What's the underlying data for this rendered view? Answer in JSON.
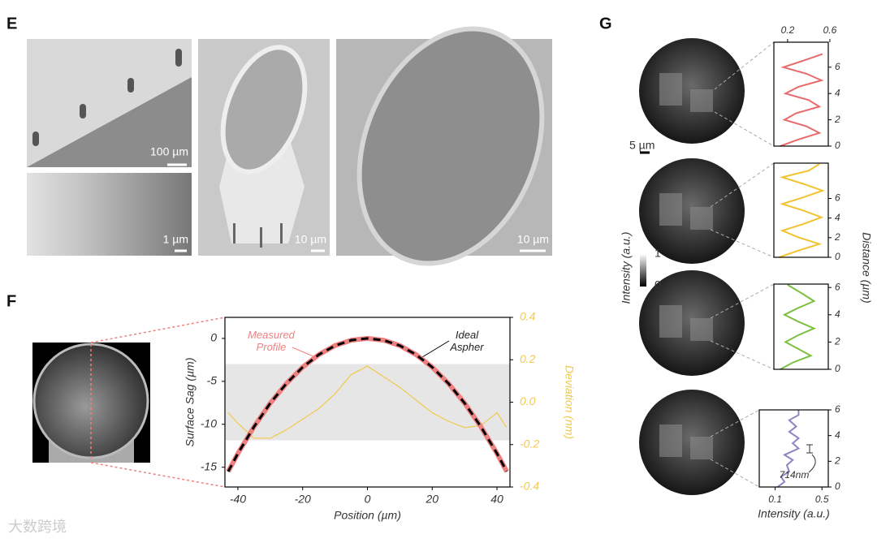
{
  "figure": {
    "panels": [
      "E",
      "F",
      "G"
    ],
    "scale_bars": [
      "100 µm",
      "1 µm",
      "10 µm",
      "10 µm"
    ],
    "g": {
      "scale_bar": "5 µm",
      "colorbar_label": "Intensity (a.u.)",
      "colorbar_ticks": [
        "1",
        "0"
      ],
      "ylabel": "Distance (µm)"
    },
    "watermark": "大数跨境"
  },
  "chart_data": [
    {
      "type": "line",
      "x": [
        -43,
        -40,
        -35,
        -30,
        -25,
        -20,
        -15,
        -10,
        -5,
        0,
        5,
        10,
        15,
        20,
        25,
        30,
        35,
        40,
        43
      ],
      "series": [
        {
          "name": "Measured Profile",
          "color": "#ef8080",
          "values": [
            -15.5,
            -13.4,
            -10.27,
            -7.54,
            -5.24,
            -3.35,
            -1.89,
            -0.84,
            -0.21,
            0,
            -0.21,
            -0.84,
            -1.89,
            -3.35,
            -5.24,
            -7.54,
            -10.27,
            -13.4,
            -15.5
          ]
        },
        {
          "name": "Ideal Aspher",
          "color": "#000000",
          "dashed": true,
          "values": [
            -15.5,
            -13.4,
            -10.27,
            -7.54,
            -5.24,
            -3.35,
            -1.89,
            -0.84,
            -0.21,
            0,
            -0.21,
            -0.84,
            -1.89,
            -3.35,
            -5.24,
            -7.54,
            -10.27,
            -13.4,
            -15.5
          ]
        },
        {
          "color": "#f2c94c",
          "axis": "y2",
          "values": [
            -0.05,
            -0.1,
            -0.17,
            -0.17,
            -0.13,
            -0.08,
            -0.03,
            0.04,
            0.13,
            0.17,
            0.12,
            0.07,
            0.01,
            -0.05,
            -0.09,
            -0.12,
            -0.11,
            -0.05,
            -0.12
          ]
        }
      ],
      "xlim": [
        -44,
        44
      ],
      "ylim": [
        -17.3,
        2.45
      ],
      "y2lim": [
        -0.4,
        0.4
      ],
      "xticks": [
        -40,
        -20,
        0,
        20,
        40
      ],
      "yticks": [
        0,
        -5,
        -10,
        -15
      ],
      "y2ticks": [
        0.4,
        0.2,
        {
          "value": 0,
          "label": "0.0"
        },
        -0.2,
        -0.4
      ],
      "y2_band": [
        -0.18,
        0.18
      ],
      "xlabel": "Position (µm)",
      "ylabel": "Surface Sag (µm)",
      "y2label": "Deviation (nm)"
    },
    {
      "type": "line",
      "color": "#e86a6a",
      "x": [
        0.13,
        0.3,
        0.5,
        0.38,
        0.17,
        0.28,
        0.5,
        0.4,
        0.18,
        0.3,
        0.52,
        0.38,
        0.16,
        0.35,
        0.53
      ],
      "y": [
        0,
        0.5,
        1,
        1.5,
        2,
        2.5,
        3,
        3.5,
        4,
        4.5,
        5,
        5.5,
        6,
        6.5,
        7
      ],
      "xlim": [
        0.07,
        0.585
      ],
      "ylim": [
        0,
        7.9
      ],
      "xticks": [
        0.2,
        0.6
      ],
      "xtick_side": "top",
      "yticks": [
        0,
        2,
        4,
        6
      ]
    },
    {
      "type": "line",
      "color": "#f2c230",
      "x": [
        0.12,
        0.3,
        0.5,
        0.3,
        0.15,
        0.35,
        0.52,
        0.35,
        0.15,
        0.35,
        0.53,
        0.35,
        0.15,
        0.4,
        0.5
      ],
      "y": [
        0,
        0.68,
        1.36,
        2.04,
        2.72,
        3.4,
        4.08,
        4.76,
        5.44,
        6.12,
        6.8,
        7.48,
        8.16,
        8.84,
        9.5
      ],
      "xlim": [
        0.07,
        0.585
      ],
      "ylim": [
        0,
        9.6
      ],
      "yticks": [
        0,
        2,
        4,
        6
      ]
    },
    {
      "type": "line",
      "color": "#7cc040",
      "x": [
        0.13,
        0.25,
        0.42,
        0.3,
        0.18,
        0.3,
        0.45,
        0.3,
        0.17,
        0.3,
        0.45,
        0.35,
        0.2
      ],
      "y": [
        0,
        0.5,
        1,
        1.5,
        2,
        2.5,
        3,
        3.5,
        4,
        4.5,
        5,
        5.5,
        6.2
      ],
      "xlim": [
        0.07,
        0.585
      ],
      "ylim": [
        0,
        6.25
      ],
      "yticks": [
        0,
        2,
        4,
        6
      ]
    },
    {
      "type": "line",
      "color": "#8e86c4",
      "x": [
        0.12,
        0.18,
        0.15,
        0.22,
        0.2,
        0.25,
        0.18,
        0.3,
        0.25,
        0.3,
        0.22,
        0.28,
        0.22,
        0.3,
        0.3
      ],
      "y": [
        0,
        0.4,
        0.8,
        1.2,
        1.7,
        2.1,
        2.5,
        3,
        3.4,
        3.8,
        4.3,
        4.7,
        5.2,
        5.6,
        6
      ],
      "xlim": [
        -0.036,
        0.554
      ],
      "ylim": [
        0,
        6
      ],
      "xticks": [
        0.1,
        0.5
      ],
      "xtick_side": "bottom",
      "yticks": [
        0,
        2,
        4,
        6
      ],
      "xlabel": "Intensity (a.u.)",
      "annotation": "714nm"
    }
  ]
}
